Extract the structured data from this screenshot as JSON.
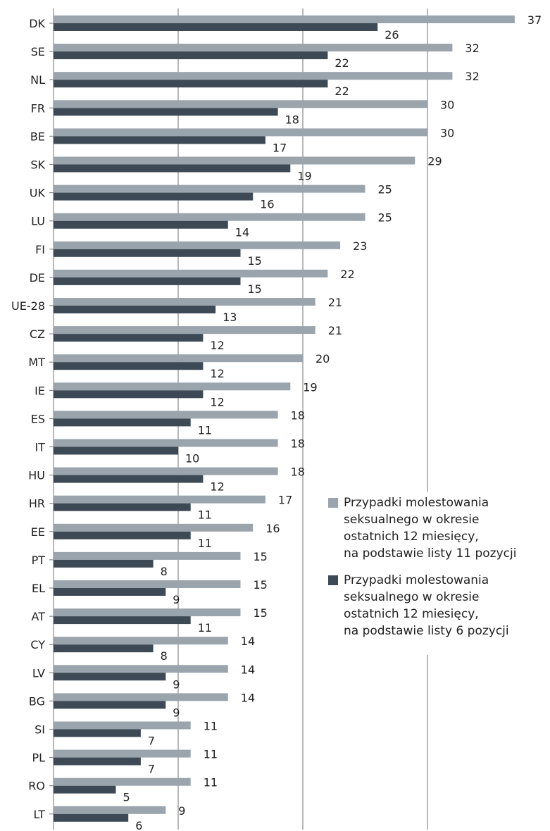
{
  "chart_data": {
    "type": "bar",
    "orientation": "horizontal",
    "categories": [
      "DK",
      "SE",
      "NL",
      "FR",
      "BE",
      "SK",
      "UK",
      "LU",
      "FI",
      "DE",
      "UE-28",
      "CZ",
      "MT",
      "IE",
      "ES",
      "IT",
      "HU",
      "HR",
      "EE",
      "PT",
      "EL",
      "AT",
      "CY",
      "LV",
      "BG",
      "SI",
      "PL",
      "RO",
      "LT"
    ],
    "series": [
      {
        "name": "Przypadki molestowania seksualnego w okresie ostatnich 12 miesięcy, na podstawie listy 11 pozycji",
        "color": "#9aa4ad",
        "values": [
          37,
          32,
          32,
          30,
          30,
          29,
          25,
          25,
          23,
          22,
          21,
          21,
          20,
          19,
          18,
          18,
          18,
          17,
          16,
          15,
          15,
          15,
          14,
          14,
          14,
          11,
          11,
          11,
          9
        ]
      },
      {
        "name": "Przypadki molestowania seksualnego w okresie ostatnich 12 miesięcy, na podstawie listy 6 pozycji",
        "color": "#3d4a55",
        "values": [
          26,
          22,
          22,
          18,
          17,
          19,
          16,
          14,
          15,
          15,
          13,
          12,
          12,
          12,
          11,
          10,
          12,
          11,
          11,
          8,
          9,
          11,
          8,
          9,
          9,
          7,
          7,
          5,
          6
        ]
      }
    ],
    "xlim": [
      0,
      40
    ],
    "gridlines": [
      0,
      10,
      20,
      30
    ],
    "legend_position": "right",
    "data_labels": true
  },
  "legend": {
    "items": [
      {
        "label": "Przypadki molestowania\nseksualnego w okresie\nostatnich 12 miesięcy,\nna podstawie listy 11 pozycji",
        "color": "#9aa4ad"
      },
      {
        "label": "Przypadki molestowania\nseksualnego w okresie\nostatnich 12 miesięcy,\nna podstawie listy 6 pozycji",
        "color": "#3d4a55"
      }
    ]
  }
}
